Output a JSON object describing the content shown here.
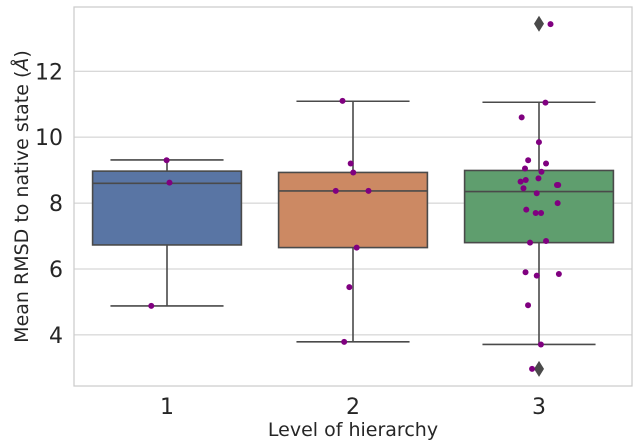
{
  "chart_data": {
    "type": "box",
    "xlabel": "Level of hierarchy",
    "ylabel": "Mean RMSD to native state (Å)",
    "ylabel_prefix": "Mean RMSD to native state (",
    "ylabel_unit": "Å",
    "ylabel_suffix": ")",
    "categories": [
      "1",
      "2",
      "3"
    ],
    "ylim": [
      2.45,
      13.95
    ],
    "yticks": [
      4,
      6,
      8,
      10,
      12
    ],
    "grid": "horizontal",
    "boxes": [
      {
        "category": "1",
        "color": "#5975a4",
        "whisker_low": 4.88,
        "q1": 6.73,
        "median": 8.6,
        "q3": 8.97,
        "whisker_high": 9.31,
        "outliers": []
      },
      {
        "category": "2",
        "color": "#cc8963",
        "whisker_low": 3.79,
        "q1": 6.65,
        "median": 8.37,
        "q3": 8.93,
        "whisker_high": 11.09,
        "outliers": []
      },
      {
        "category": "3",
        "color": "#5f9e6e",
        "whisker_low": 3.71,
        "q1": 6.8,
        "median": 8.35,
        "q3": 8.99,
        "whisker_high": 11.06,
        "outliers": [
          13.44,
          2.97
        ]
      }
    ],
    "points_color": "#800080",
    "points": [
      {
        "category": "1",
        "values": [
          9.3,
          8.62,
          4.88
        ]
      },
      {
        "category": "2",
        "values": [
          11.1,
          9.2,
          8.93,
          8.37,
          8.37,
          6.65,
          5.45,
          3.79
        ]
      },
      {
        "category": "3",
        "values": [
          13.43,
          11.05,
          10.6,
          9.85,
          9.3,
          9.2,
          9.05,
          8.95,
          8.75,
          8.7,
          8.65,
          8.55,
          8.55,
          8.45,
          8.3,
          8.0,
          7.8,
          7.7,
          7.7,
          6.85,
          6.8,
          5.9,
          5.85,
          5.8,
          4.9,
          3.71,
          2.97
        ]
      }
    ]
  }
}
